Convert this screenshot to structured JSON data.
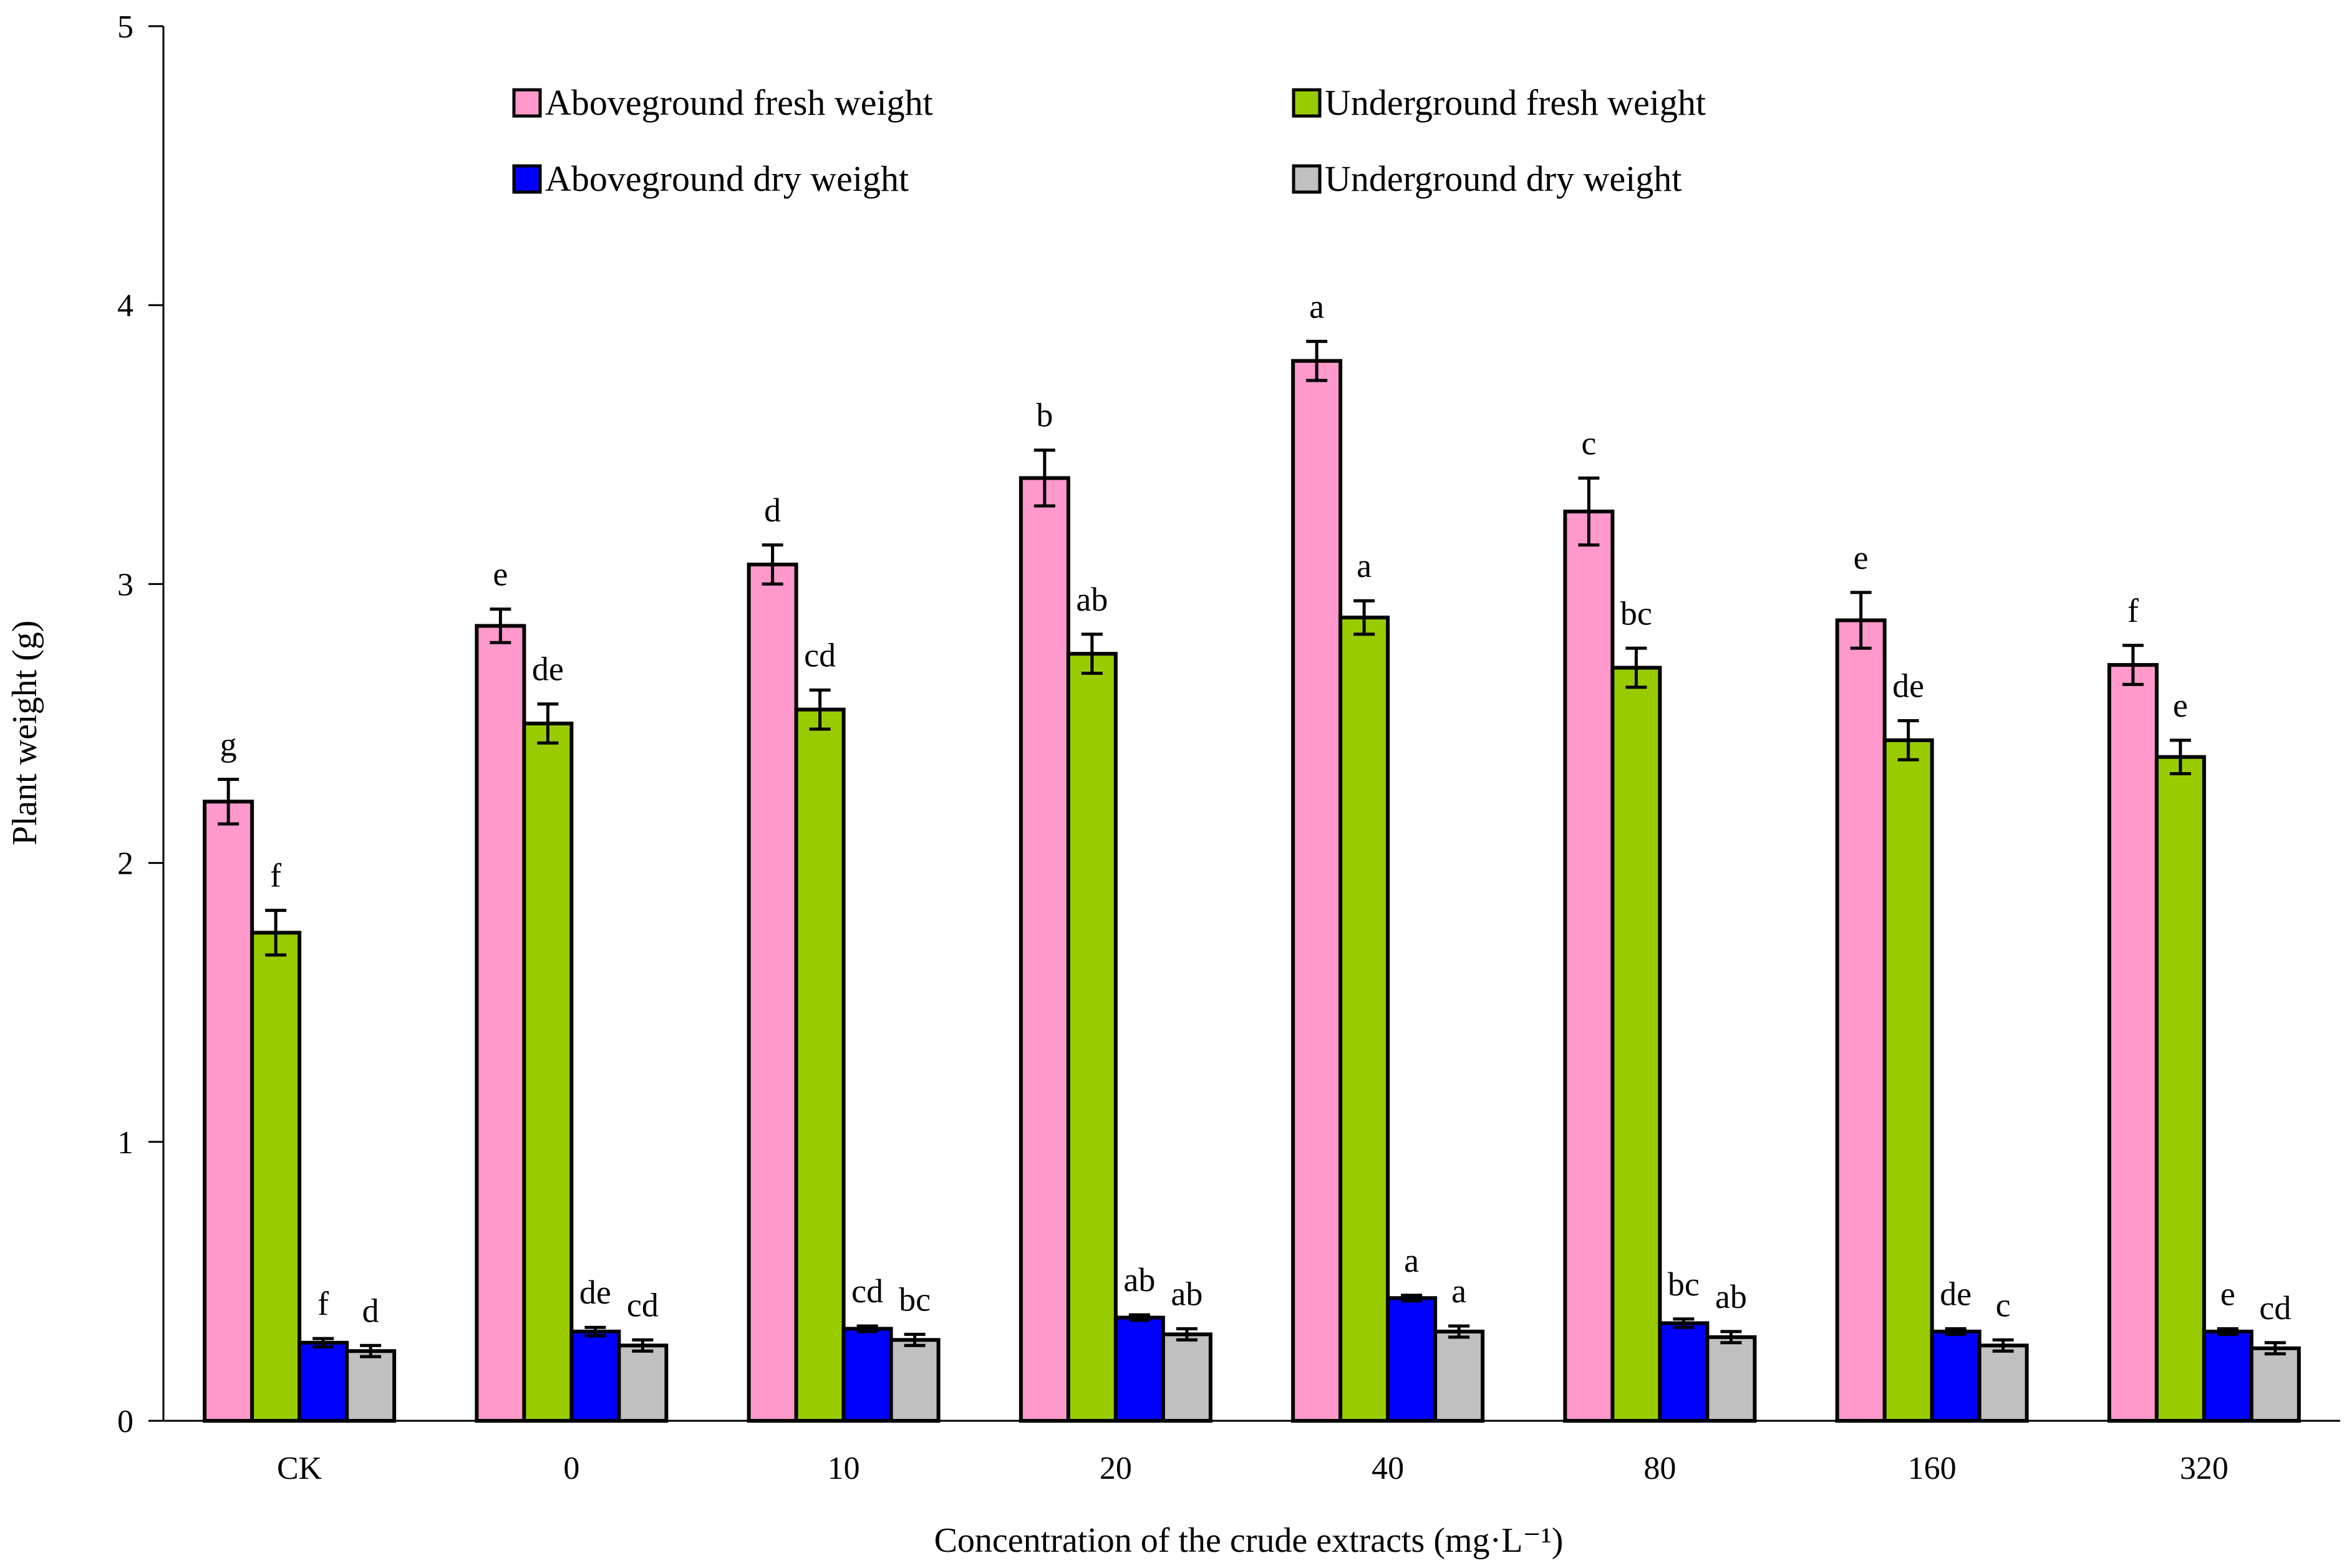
{
  "chart_data": {
    "type": "bar",
    "title": "",
    "xlabel": "Concentration of the crude extracts (mg·L⁻¹)",
    "ylabel": "Plant weight (g)",
    "ylim": [
      0,
      5
    ],
    "yticks": [
      "0",
      "1",
      "2",
      "3",
      "4",
      "5"
    ],
    "categories": [
      "CK",
      "0",
      "10",
      "20",
      "40",
      "80",
      "160",
      "320"
    ],
    "legend_position": "top",
    "series": [
      {
        "name": "Aboveground fresh weight",
        "color": "#FF99CC",
        "values": [
          2.22,
          2.85,
          3.07,
          3.38,
          3.8,
          3.26,
          2.87,
          2.71
        ],
        "errors": [
          0.08,
          0.06,
          0.07,
          0.1,
          0.07,
          0.12,
          0.1,
          0.07
        ],
        "labels": [
          "g",
          "e",
          "d",
          "b",
          "a",
          "c",
          "e",
          "f"
        ]
      },
      {
        "name": "Underground fresh weight",
        "color": "#99CC00",
        "values": [
          1.75,
          2.5,
          2.55,
          2.75,
          2.88,
          2.7,
          2.44,
          2.38
        ],
        "errors": [
          0.08,
          0.07,
          0.07,
          0.07,
          0.06,
          0.07,
          0.07,
          0.06
        ],
        "labels": [
          "f",
          "de",
          "cd",
          "ab",
          "a",
          "bc",
          "de",
          "e"
        ]
      },
      {
        "name": "Aboveground dry weight",
        "color": "#0000FF",
        "values": [
          0.28,
          0.32,
          0.33,
          0.37,
          0.44,
          0.35,
          0.32,
          0.32
        ],
        "errors": [
          0.015,
          0.015,
          0.01,
          0.01,
          0.01,
          0.015,
          0.01,
          0.01
        ],
        "labels": [
          "f",
          "de",
          "cd",
          "ab",
          "a",
          "bc",
          "de",
          "e"
        ]
      },
      {
        "name": "Underground dry weight",
        "color": "#C0C0C0",
        "values": [
          0.25,
          0.27,
          0.29,
          0.31,
          0.32,
          0.3,
          0.27,
          0.26
        ],
        "errors": [
          0.02,
          0.02,
          0.02,
          0.02,
          0.02,
          0.02,
          0.02,
          0.02
        ],
        "labels": [
          "d",
          "cd",
          "bc",
          "ab",
          "a",
          "ab",
          "c",
          "cd"
        ]
      }
    ]
  }
}
